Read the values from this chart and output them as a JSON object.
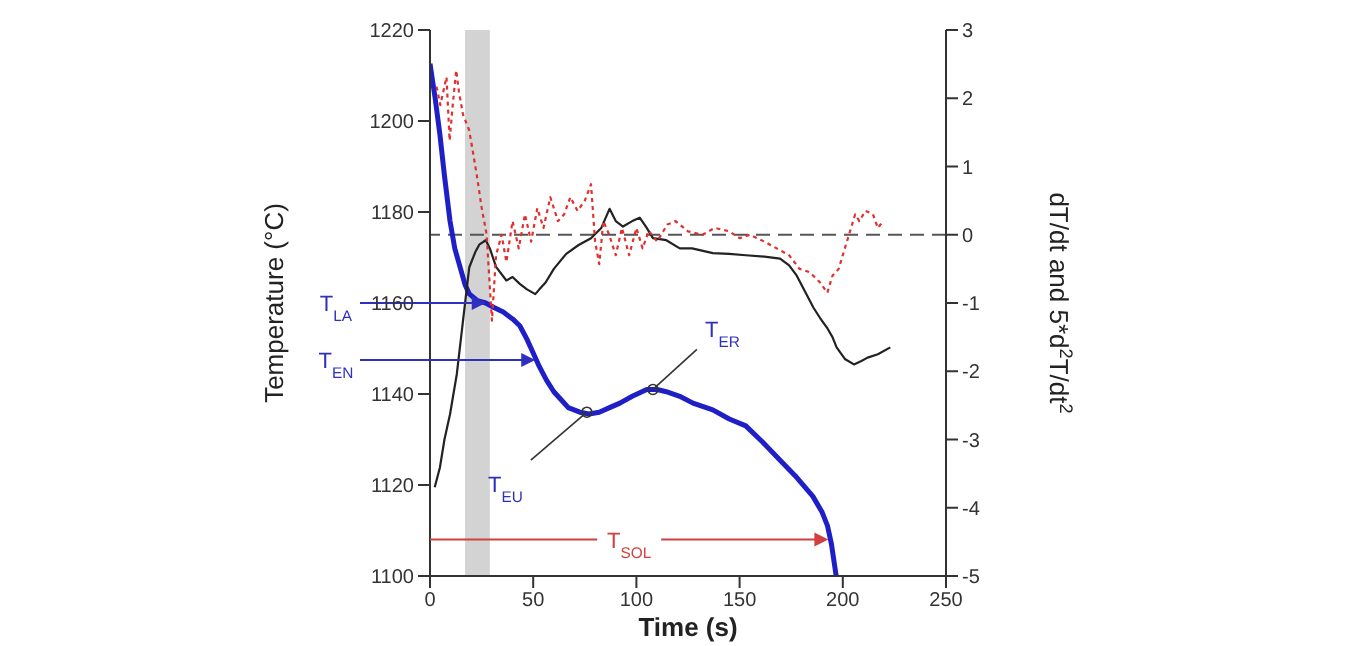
{
  "chart_data": {
    "type": "line",
    "xlabel": "Time (s)",
    "ylabel": "Temperature (°C)",
    "y2label": "dT/dt and 5*d$^{2}$T/dt$^{2}$",
    "xlim": [
      0,
      250
    ],
    "xticks": [
      0,
      50,
      100,
      150,
      200,
      250
    ],
    "ylim": [
      1100,
      1220
    ],
    "yticks": [
      1100,
      1120,
      1140,
      1160,
      1180,
      1200,
      1220
    ],
    "y2lim": [
      -5,
      3
    ],
    "y2ticks": [
      -5,
      -4,
      -3,
      -2,
      -1,
      0,
      1,
      2,
      3
    ],
    "grid": false,
    "legend": false,
    "marker": "none",
    "series": [
      {
        "color": "#1f1fc8",
        "line_style": "solid",
        "x": [
          0,
          2.5,
          4.8,
          7,
          9.7,
          12,
          14.5,
          17,
          19,
          23,
          27,
          31,
          35.5,
          40,
          43.5,
          47,
          50,
          53,
          56.5,
          60,
          63,
          67,
          72.6,
          77,
          82,
          87,
          92,
          98,
          105,
          110,
          114.5,
          121,
          127.4,
          137,
          145,
          153,
          161,
          169.5,
          177,
          185.5,
          190,
          192.6,
          194.5,
          196.8
        ],
        "values": [
          1212.6,
          1205,
          1197,
          1188,
          1178,
          1172,
          1168,
          1164,
          1162,
          1160.5,
          1160,
          1159,
          1158,
          1156.5,
          1155,
          1152,
          1149,
          1146,
          1143,
          1140.5,
          1139,
          1137,
          1136,
          1135.6,
          1136,
          1137,
          1138,
          1139.5,
          1141,
          1141,
          1140.5,
          1139.5,
          1138,
          1136.5,
          1134.5,
          1133,
          1129.5,
          1125.5,
          1122,
          1117.5,
          1114,
          1111,
          1107,
          1100
        ]
      },
      {
        "color": "#222222",
        "line_style": "solid",
        "axis": "y2",
        "x": [
          2.3,
          4.8,
          7,
          9.7,
          13,
          16,
          19,
          22,
          24,
          27,
          29,
          32,
          37,
          40,
          43.5,
          47,
          51,
          53,
          56,
          60,
          66,
          72,
          78,
          83,
          87,
          90,
          93.5,
          98,
          101.6,
          105,
          108,
          114.5,
          121,
          127,
          137,
          145,
          153,
          162,
          169.6,
          174,
          177.7,
          182,
          185.8,
          189,
          192.3,
          195,
          197,
          201,
          205.4,
          209,
          212,
          217,
          223
        ],
        "values": [
          -3.7,
          -3.41,
          -3.0,
          -2.63,
          -2.04,
          -1.26,
          -0.48,
          -0.25,
          -0.14,
          -0.08,
          -0.2,
          -0.47,
          -0.67,
          -0.62,
          -0.72,
          -0.8,
          -0.87,
          -0.8,
          -0.7,
          -0.5,
          -0.28,
          -0.15,
          -0.05,
          0.1,
          0.38,
          0.2,
          0.12,
          0.2,
          0.25,
          0.1,
          -0.05,
          -0.08,
          -0.2,
          -0.2,
          -0.27,
          -0.28,
          -0.3,
          -0.32,
          -0.35,
          -0.45,
          -0.6,
          -0.85,
          -1.07,
          -1.22,
          -1.36,
          -1.5,
          -1.65,
          -1.82,
          -1.9,
          -1.85,
          -1.8,
          -1.75,
          -1.65
        ]
      },
      {
        "color": "#e03030",
        "line_style": "dotted",
        "axis": "y2",
        "x": [
          3.2,
          5,
          8,
          9.5,
          11,
          12.7,
          14,
          16,
          19,
          22.6,
          25,
          27.4,
          30,
          32,
          34.7,
          37,
          40,
          43,
          46,
          49,
          52,
          55,
          58.3,
          62,
          65,
          68,
          71.5,
          75,
          78,
          80,
          82,
          84,
          86.8,
          90,
          93,
          96.5,
          100,
          103,
          106,
          110,
          115,
          119,
          125,
          132,
          138,
          145,
          150,
          155,
          162,
          168,
          174,
          179,
          184,
          189,
          192.5,
          195,
          198,
          201,
          203,
          206,
          208,
          211,
          214.6,
          217,
          219.5
        ],
        "values": [
          2.17,
          1.9,
          2.31,
          1.38,
          1.9,
          2.41,
          2.1,
          1.76,
          1.53,
          0.89,
          0.4,
          0.01,
          -1.26,
          -0.3,
          0.0,
          -0.4,
          0.2,
          -0.2,
          0.3,
          -0.1,
          0.39,
          0.1,
          0.55,
          0.2,
          0.3,
          0.55,
          0.35,
          0.5,
          0.74,
          -0.1,
          -0.43,
          0.2,
          0.0,
          -0.3,
          0.1,
          -0.3,
          0.1,
          -0.2,
          0.06,
          -0.1,
          0.15,
          0.2,
          0.05,
          0.0,
          0.1,
          0.05,
          -0.05,
          0.0,
          -0.1,
          -0.2,
          -0.3,
          -0.5,
          -0.55,
          -0.7,
          -0.85,
          -0.6,
          -0.5,
          -0.2,
          0.0,
          0.3,
          0.2,
          0.35,
          0.3,
          0.1,
          0.2
        ]
      }
    ],
    "ref_lines": [
      {
        "axis": "y2",
        "value": 0,
        "color": "#555555",
        "line_style": "dashed"
      }
    ],
    "bands": [
      {
        "axis": "x",
        "from": 17,
        "to": 29,
        "color": "#d3d3d3"
      }
    ],
    "annotations": [
      {
        "text": "T$_{LA}$",
        "x": 27,
        "y": 1160
      },
      {
        "text": "T$_{EN}$",
        "x": 51,
        "y": 1147.5
      },
      {
        "text": "T$_{EU}$",
        "x": 76,
        "y": 1136
      },
      {
        "text": "T$_{ER}$",
        "x": 108,
        "y": 1141
      },
      {
        "text": "T$_{SOL}$",
        "x": 193,
        "y": 1108
      }
    ]
  }
}
